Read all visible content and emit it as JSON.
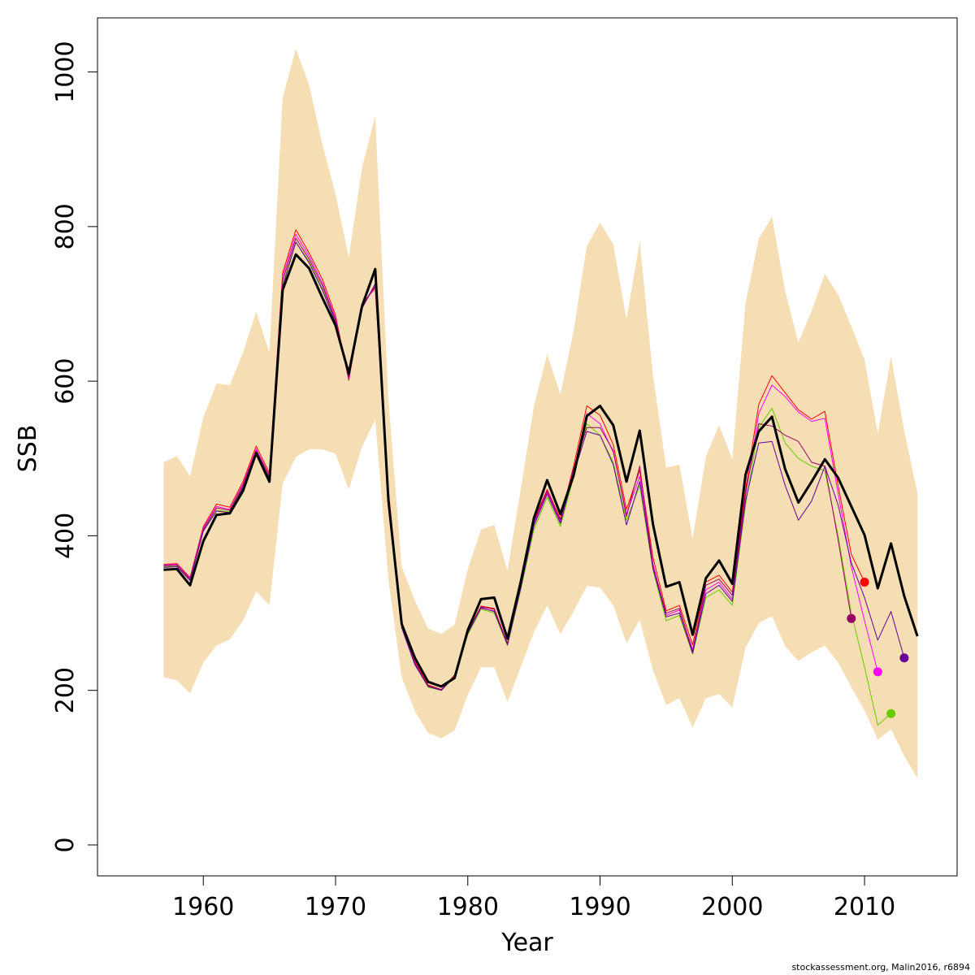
{
  "chart_data": {
    "type": "line",
    "title": "",
    "xlabel": "Year",
    "ylabel": "SSB",
    "xlim": [
      1952,
      2017
    ],
    "ylim": [
      -40,
      1070
    ],
    "x_ticks": [
      1960,
      1970,
      1980,
      1990,
      2000,
      2010
    ],
    "y_ticks": [
      0,
      200,
      400,
      600,
      800,
      1000
    ],
    "band_color": "#F5DEB3",
    "confidence_band": {
      "x": [
        1957,
        1958,
        1959,
        1960,
        1961,
        1962,
        1963,
        1964,
        1965,
        1966,
        1967,
        1968,
        1969,
        1970,
        1971,
        1972,
        1973,
        1974,
        1975,
        1976,
        1977,
        1978,
        1979,
        1980,
        1981,
        1982,
        1983,
        1984,
        1985,
        1986,
        1987,
        1988,
        1989,
        1990,
        1991,
        1992,
        1993,
        1994,
        1995,
        1996,
        1997,
        1998,
        1999,
        2000,
        2001,
        2002,
        2003,
        2004,
        2005,
        2006,
        2007,
        2008,
        2009,
        2010,
        2011,
        2012,
        2013,
        2014
      ],
      "upper": [
        495,
        503,
        477,
        553,
        597,
        595,
        637,
        690,
        637,
        967,
        1030,
        983,
        907,
        842,
        760,
        876,
        943,
        576,
        360,
        316,
        280,
        273,
        285,
        357,
        408,
        414,
        355,
        460,
        568,
        635,
        583,
        665,
        775,
        805,
        777,
        680,
        781,
        608,
        488,
        492,
        396,
        502,
        543,
        499,
        701,
        784,
        813,
        716,
        650,
        691,
        739,
        712,
        671,
        628,
        532,
        632,
        536,
        455
      ],
      "lower": [
        217,
        213,
        196,
        236,
        258,
        266,
        290,
        328,
        310,
        467,
        502,
        512,
        512,
        506,
        460,
        515,
        550,
        343,
        217,
        173,
        145,
        138,
        148,
        194,
        230,
        230,
        185,
        230,
        275,
        310,
        273,
        302,
        335,
        333,
        310,
        261,
        291,
        226,
        181,
        190,
        152,
        190,
        195,
        178,
        255,
        287,
        296,
        257,
        238,
        249,
        258,
        236,
        204,
        174,
        136,
        150,
        115,
        86
      ]
    },
    "series": [
      {
        "x": [
          1957,
          1958,
          1959,
          1960,
          1961,
          1962,
          1963,
          1964,
          1965,
          1966,
          1967,
          1968,
          1969,
          1970,
          1971,
          1972,
          1973,
          1974,
          1975,
          1976,
          1977,
          1978,
          1979,
          1980,
          1981,
          1982,
          1983,
          1984,
          1985,
          1986,
          1987,
          1988,
          1989,
          1990,
          1991,
          1992,
          1993,
          1994,
          1995,
          1996,
          1997,
          1998,
          1999,
          2000,
          2001,
          2002,
          2003,
          2004,
          2005,
          2006,
          2007,
          2008,
          2009,
          2010
        ],
        "values": [
          363,
          364,
          346,
          412,
          441,
          437,
          470,
          516,
          481,
          740,
          796,
          766,
          732,
          685,
          601,
          700,
          720,
          458,
          286,
          238,
          207,
          201,
          220,
          276,
          309,
          306,
          261,
          337,
          420,
          460,
          422,
          490,
          568,
          556,
          518,
          434,
          485,
          372,
          303,
          310,
          259,
          340,
          349,
          327,
          460,
          570,
          607,
          585,
          563,
          551,
          561,
          465,
          376,
          340
        ],
        "color": "#FF0000",
        "width": 1,
        "end_marker": true
      },
      {
        "x": [
          1957,
          1958,
          1959,
          1960,
          1961,
          1962,
          1963,
          1964,
          1965,
          1966,
          1967,
          1968,
          1969,
          1970,
          1971,
          1972,
          1973,
          1974,
          1975,
          1976,
          1977,
          1978,
          1979,
          1980,
          1981,
          1982,
          1983,
          1984,
          1985,
          1986,
          1987,
          1988,
          1989,
          1990,
          1991,
          1992,
          1993,
          1994,
          1995,
          1996,
          1997,
          1998,
          1999,
          2000,
          2001,
          2002,
          2003,
          2004,
          2005,
          2006,
          2007,
          2008,
          2009,
          2010,
          2011
        ],
        "values": [
          362,
          363,
          345,
          410,
          438,
          434,
          467,
          512,
          478,
          735,
          790,
          762,
          727,
          681,
          603,
          697,
          722,
          455,
          284,
          236,
          205,
          200,
          218,
          273,
          306,
          303,
          259,
          334,
          415,
          456,
          418,
          484,
          558,
          545,
          508,
          428,
          477,
          364,
          297,
          304,
          253,
          330,
          340,
          318,
          452,
          558,
          595,
          580,
          560,
          548,
          552,
          455,
          360,
          290,
          224
        ],
        "color": "#FF00FF",
        "width": 1,
        "end_marker": true
      },
      {
        "x": [
          1957,
          1958,
          1959,
          1960,
          1961,
          1962,
          1963,
          1964,
          1965,
          1966,
          1967,
          1968,
          1969,
          1970,
          1971,
          1972,
          1973,
          1974,
          1975,
          1976,
          1977,
          1978,
          1979,
          1980,
          1981,
          1982,
          1983,
          1984,
          1985,
          1986,
          1987,
          1988,
          1989,
          1990,
          1991,
          1992,
          1993,
          1994,
          1995,
          1996,
          1997,
          1998,
          1999,
          2000,
          2001,
          2002,
          2003,
          2004,
          2005,
          2006,
          2007,
          2008,
          2009,
          2010,
          2011,
          2012
        ],
        "values": [
          360,
          361,
          343,
          407,
          433,
          431,
          463,
          508,
          475,
          725,
          780,
          755,
          720,
          677,
          605,
          695,
          725,
          452,
          282,
          234,
          204,
          200,
          217,
          272,
          305,
          300,
          258,
          330,
          408,
          450,
          412,
          476,
          545,
          530,
          495,
          420,
          465,
          356,
          290,
          297,
          247,
          320,
          330,
          310,
          440,
          540,
          565,
          520,
          500,
          490,
          484,
          400,
          300,
          230,
          155,
          170
        ],
        "color": "#66CC00",
        "width": 1,
        "end_marker": true
      },
      {
        "x": [
          1957,
          1958,
          1959,
          1960,
          1961,
          1962,
          1963,
          1964,
          1965,
          1966,
          1967,
          1968,
          1969,
          1970,
          1971,
          1972,
          1973,
          1974,
          1975,
          1976,
          1977,
          1978,
          1979,
          1980,
          1981,
          1982,
          1983,
          1984,
          1985,
          1986,
          1987,
          1988,
          1989,
          1990,
          1991,
          1992,
          1993,
          1994,
          1995,
          1996,
          1997,
          1998,
          1999,
          2000,
          2001,
          2002,
          2003,
          2004,
          2005,
          2006,
          2007,
          2008,
          2009
        ],
        "values": [
          361,
          362,
          344,
          408,
          436,
          433,
          465,
          510,
          477,
          730,
          785,
          758,
          724,
          679,
          604,
          698,
          723,
          454,
          283,
          235,
          206,
          201,
          219,
          275,
          308,
          305,
          260,
          336,
          418,
          458,
          420,
          487,
          540,
          540,
          510,
          425,
          490,
          360,
          300,
          306,
          250,
          336,
          344,
          323,
          455,
          545,
          542,
          530,
          522,
          495,
          490,
          395,
          293
        ],
        "color": "#990066",
        "width": 1,
        "end_marker": true
      },
      {
        "x": [
          1957,
          1958,
          1959,
          1960,
          1961,
          1962,
          1963,
          1964,
          1965,
          1966,
          1967,
          1968,
          1969,
          1970,
          1971,
          1972,
          1973,
          1974,
          1975,
          1976,
          1977,
          1978,
          1979,
          1980,
          1981,
          1982,
          1983,
          1984,
          1985,
          1986,
          1987,
          1988,
          1989,
          1990,
          1991,
          1992,
          1993,
          1994,
          1995,
          1996,
          1997,
          1998,
          1999,
          2000,
          2001,
          2002,
          2003,
          2004,
          2005,
          2006,
          2007,
          2008,
          2009,
          2010,
          2011,
          2012,
          2013
        ],
        "values": [
          359,
          360,
          342,
          406,
          432,
          430,
          462,
          507,
          474,
          722,
          780,
          753,
          718,
          676,
          606,
          694,
          726,
          451,
          281,
          233,
          205,
          200,
          218,
          274,
          307,
          302,
          259,
          332,
          413,
          454,
          416,
          480,
          535,
          530,
          492,
          414,
          470,
          358,
          295,
          300,
          248,
          325,
          336,
          315,
          445,
          520,
          522,
          465,
          420,
          445,
          490,
          440,
          365,
          320,
          265,
          302,
          242
        ],
        "color": "#660099",
        "width": 1,
        "end_marker": true
      },
      {
        "x": [
          1957,
          1958,
          1959,
          1960,
          1961,
          1962,
          1963,
          1964,
          1965,
          1966,
          1967,
          1968,
          1969,
          1970,
          1971,
          1972,
          1973,
          1974,
          1975,
          1976,
          1977,
          1978,
          1979,
          1980,
          1981,
          1982,
          1983,
          1984,
          1985,
          1986,
          1987,
          1988,
          1989,
          1990,
          1991,
          1992,
          1993,
          1994,
          1995,
          1996,
          1997,
          1998,
          1999,
          2000,
          2001,
          2002,
          2003,
          2004,
          2005,
          2006,
          2007,
          2008,
          2009,
          2010,
          2011,
          2012,
          2013,
          2014
        ],
        "values": [
          356,
          357,
          336,
          393,
          427,
          429,
          458,
          507,
          470,
          718,
          764,
          746,
          708,
          672,
          610,
          697,
          745,
          445,
          286,
          242,
          211,
          205,
          216,
          278,
          318,
          320,
          267,
          340,
          423,
          472,
          428,
          478,
          555,
          568,
          543,
          470,
          536,
          415,
          334,
          340,
          272,
          345,
          368,
          338,
          479,
          535,
          554,
          486,
          443,
          470,
          499,
          475,
          438,
          401,
          332,
          390,
          322,
          270
        ],
        "color": "#000000",
        "width": 3,
        "end_marker": false
      }
    ]
  },
  "credit": "stockassessment.org, Malin2016, r6894"
}
